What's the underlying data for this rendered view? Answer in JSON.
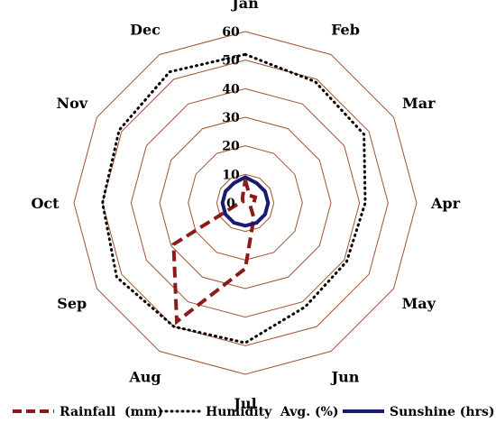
{
  "chart_data": {
    "type": "radar",
    "title": "",
    "categories": [
      "Jan",
      "Feb",
      "Mar",
      "Apr",
      "May",
      "Jun",
      "Jul",
      "Aug",
      "Sep",
      "Oct",
      "Nov",
      "Dec"
    ],
    "rlim": [
      0,
      60
    ],
    "ticks": [
      "0",
      "10",
      "20",
      "30",
      "40",
      "50",
      "60"
    ],
    "tick_values": [
      0,
      10,
      20,
      30,
      40,
      50,
      60
    ],
    "grid": true,
    "legend_position": "bottom",
    "series": [
      {
        "name": "Rainfall  (mm)",
        "color": "#8b1a1a",
        "style": "dashed",
        "values": [
          8,
          3,
          4,
          3,
          2,
          6,
          23,
          48,
          29,
          2,
          1,
          2
        ]
      },
      {
        "name": "Humidity  Avg. (%)",
        "color": "#000000",
        "style": "dotted",
        "values": [
          52,
          49,
          48,
          42,
          41,
          42,
          49,
          50,
          52,
          50,
          51,
          53
        ]
      },
      {
        "name": "Sunshine (hrs)",
        "color": "#1a1a6e",
        "style": "solid",
        "values": [
          9,
          8,
          8,
          8,
          8,
          8,
          8,
          8,
          8,
          8,
          8,
          8
        ]
      }
    ]
  },
  "colors": {
    "grid": "#a0522d"
  }
}
